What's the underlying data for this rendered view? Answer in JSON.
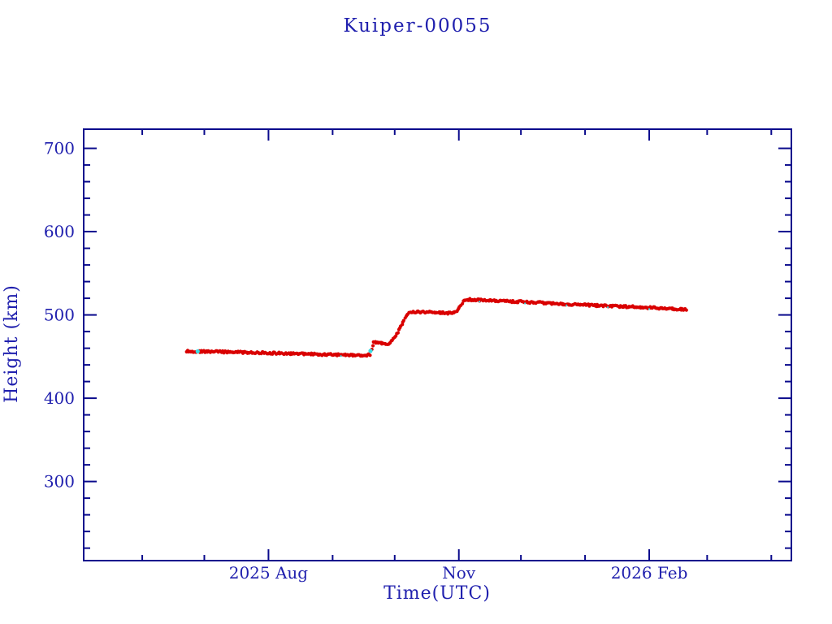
{
  "window": {
    "background": "#ffffff"
  },
  "chart_data": {
    "type": "scatter",
    "title": "Kuiper-00055",
    "xlabel": "Time(UTC)",
    "ylabel": "Height (km)",
    "legend": "none",
    "grid": "off",
    "frame": "full-box-inward-ticks",
    "colors": {
      "frame": "#0a0a8c",
      "text": "#2020ae",
      "series_red": "#d90000",
      "series_cyan": "#3adce2",
      "background": "#ffffff"
    },
    "x_axis": {
      "epoch": "days since 2025-06-01",
      "range_days": [
        -28.3,
        313.7
      ],
      "tick_unit": "month",
      "month_ticks": [
        {
          "day": 0,
          "date": "2025-06-01",
          "label": "",
          "major": false
        },
        {
          "day": 30,
          "date": "2025-07-01",
          "label": "",
          "major": false
        },
        {
          "day": 61,
          "date": "2025-08-01",
          "label": "2025 Aug",
          "major": true
        },
        {
          "day": 92,
          "date": "2025-09-01",
          "label": "",
          "major": false
        },
        {
          "day": 122,
          "date": "2025-10-01",
          "label": "",
          "major": false
        },
        {
          "day": 153,
          "date": "2025-11-01",
          "label": "Nov",
          "major": true
        },
        {
          "day": 183,
          "date": "2025-12-01",
          "label": "",
          "major": false
        },
        {
          "day": 214,
          "date": "2026-01-01",
          "label": "",
          "major": false
        },
        {
          "day": 245,
          "date": "2026-02-01",
          "label": "2026 Feb",
          "major": true
        },
        {
          "day": 273,
          "date": "2026-03-01",
          "label": "",
          "major": false
        },
        {
          "day": 304,
          "date": "2026-04-01",
          "label": "",
          "major": false
        }
      ]
    },
    "y_axis": {
      "range": [
        205,
        723
      ],
      "major_ticks": [
        {
          "value": 300,
          "label": "300"
        },
        {
          "value": 400,
          "label": "400"
        },
        {
          "value": 500,
          "label": "500"
        },
        {
          "value": 600,
          "label": "600"
        },
        {
          "value": 700,
          "label": "700"
        }
      ],
      "minor_step": 20,
      "minor_range": [
        220,
        700
      ]
    },
    "series": [
      {
        "name": "height-track",
        "style": "dense-scatter-line",
        "color_key": "series_red",
        "anchors": [
          [
            21.5,
            456.5
          ],
          [
            35,
            455.8
          ],
          [
            61,
            454.3
          ],
          [
            90,
            452.4
          ],
          [
            103,
            451.3
          ],
          [
            108,
            451.0
          ],
          [
            110,
            452.5
          ],
          [
            112,
            466.5
          ],
          [
            114,
            467.0
          ],
          [
            118,
            465.3
          ],
          [
            120,
            466.5
          ],
          [
            123,
            477.0
          ],
          [
            126,
            492.0
          ],
          [
            128.5,
            501.5
          ],
          [
            131,
            503.6
          ],
          [
            140,
            503.2
          ],
          [
            150,
            502.0
          ],
          [
            152,
            503.5
          ],
          [
            153.5,
            510.0
          ],
          [
            155.5,
            517.5
          ],
          [
            157,
            518.6
          ],
          [
            165,
            517.6
          ],
          [
            183,
            515.8
          ],
          [
            214,
            512.0
          ],
          [
            245,
            508.8
          ],
          [
            263,
            506.3
          ]
        ]
      },
      {
        "name": "cyan-markers",
        "style": "scatter",
        "color_key": "series_cyan",
        "points": [
          [
            26.8,
            456.2,
            2.6
          ],
          [
            110.3,
            456.8,
            2.6
          ],
          [
            96.0,
            450.6,
            1.1
          ],
          [
            163.0,
            516.0,
            1.1
          ],
          [
            185.0,
            513.8,
            1.1
          ],
          [
            205.0,
            511.4,
            1.1
          ],
          [
            225.0,
            509.2,
            1.1
          ],
          [
            245.0,
            507.0,
            1.1
          ]
        ]
      }
    ]
  }
}
